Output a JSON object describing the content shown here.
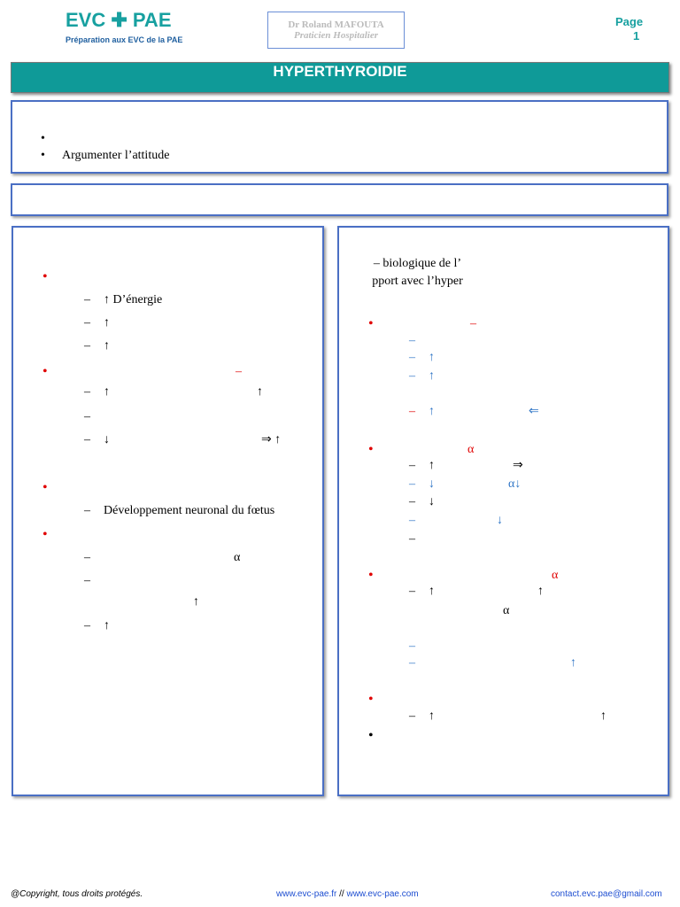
{
  "header": {
    "logo": "EVC ✚ PAE",
    "tagline": "Préparation aux EVC de la PAE",
    "stamp_name": "Dr Roland MAFOUTA",
    "stamp_role": "Praticien Hospitalier",
    "page_label": "Page",
    "page_number": "1"
  },
  "title": "HYPERTHYROIDIE",
  "objectives": [
    {
      "marker": "•"
    },
    {
      "marker": "•",
      "text": "Argumenter l’attitude"
    }
  ],
  "left": [
    {
      "marker": "•",
      "color": "#e00000"
    },
    {
      "marker": "–",
      "text": "↑ D’énergie"
    },
    {
      "marker": "–",
      "text": "↑"
    },
    {
      "marker": "–",
      "text": "↑"
    },
    {
      "marker": "•",
      "color": "#e00000",
      "extras": [
        {
          "text": "–",
          "color": "#e00000"
        }
      ]
    },
    {
      "marker": "–",
      "text": "↑",
      "extras": [
        {
          "text": "↑"
        }
      ]
    },
    {
      "marker": "–"
    },
    {
      "marker": "–",
      "text": "↓",
      "extras": [
        {
          "text": "⇒ ↑"
        }
      ]
    },
    {
      "marker": "•",
      "color": "#e00000"
    },
    {
      "marker": "–",
      "text": "Développement neuronal du fœtus"
    },
    {
      "marker": "•",
      "color": "#e00000"
    },
    {
      "marker": "–",
      "extras": [
        {
          "text": "α"
        }
      ]
    },
    {
      "marker": "–"
    },
    {
      "text": "↑"
    },
    {
      "marker": "–",
      "text": "↑"
    }
  ],
  "right_heading": [
    "– biologique de l’",
    "pport avec l’hyper"
  ],
  "right": [
    {
      "marker": "•",
      "color": "#e00000",
      "extras": [
        {
          "text": "–",
          "color": "#e00000"
        }
      ]
    },
    {
      "marker": "–",
      "color": "#2e75c6"
    },
    {
      "marker": "–",
      "color": "#2e75c6",
      "text": "↑",
      "text_color": "#2e75c6"
    },
    {
      "marker": "–",
      "color": "#2e75c6",
      "text": "↑",
      "text_color": "#2e75c6"
    },
    {
      "marker": "–",
      "color": "#e00000",
      "text": "↑",
      "text_color": "#2e75c6",
      "extras": [
        {
          "text": "⇐",
          "color": "#2e75c6"
        }
      ]
    },
    {
      "marker": "•",
      "color": "#e00000",
      "extras": [
        {
          "text": "α",
          "color": "#e00000"
        }
      ]
    },
    {
      "marker": "–",
      "text": "↑",
      "extras": [
        {
          "text": "⇒"
        }
      ]
    },
    {
      "marker": "–",
      "color": "#2e75c6",
      "text": "↓",
      "text_color": "#2e75c6",
      "extras": [
        {
          "text": "α↓",
          "color": "#2e75c6"
        }
      ]
    },
    {
      "marker": "–",
      "text": "↓"
    },
    {
      "marker": "–",
      "color": "#2e75c6",
      "extras": [
        {
          "text": "↓",
          "color": "#2e75c6"
        }
      ]
    },
    {
      "marker": "–"
    },
    {
      "marker": "•",
      "color": "#e00000",
      "extras": [
        {
          "text": "α",
          "color": "#e00000"
        }
      ]
    },
    {
      "marker": "–",
      "text": "↑",
      "extras": [
        {
          "text": "↑"
        }
      ]
    },
    {
      "text": "α"
    },
    {
      "marker": "–",
      "color": "#2e75c6"
    },
    {
      "marker": "–",
      "color": "#2e75c6",
      "extras": [
        {
          "text": "↑",
          "color": "#2e75c6"
        }
      ]
    },
    {
      "marker": "•",
      "color": "#e00000"
    },
    {
      "marker": "–",
      "text": "↑",
      "extras": [
        {
          "text": "↑"
        }
      ]
    },
    {
      "marker": "•"
    }
  ],
  "footer": {
    "copyright": "@Copyright, tous droits protégés.",
    "link1": "www.evc-pae.fr",
    "sep": "//",
    "link2": "www.evc-pae.com",
    "email": "contact.evc.pae@gmail.com"
  }
}
